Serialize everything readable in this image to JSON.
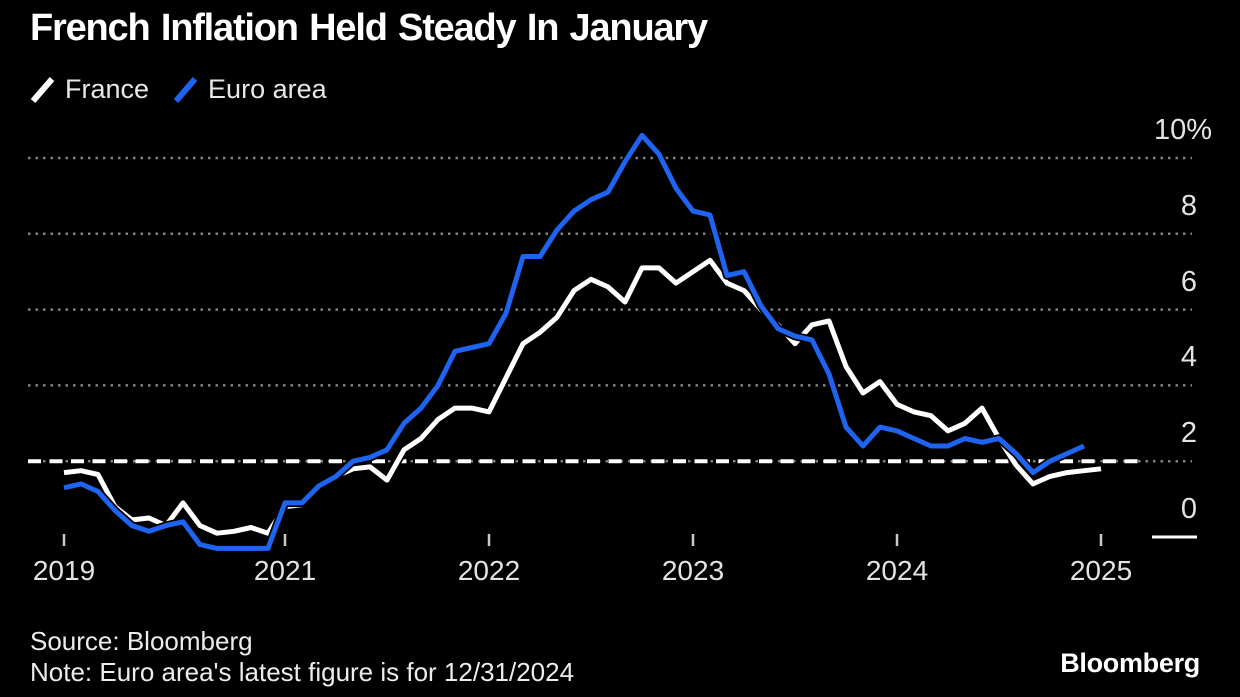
{
  "header": {
    "title": "French Inflation Held Steady In January"
  },
  "legend": {
    "items": [
      {
        "label": "France",
        "color": "#ffffff"
      },
      {
        "label": "Euro area",
        "color": "#1e64f0"
      }
    ]
  },
  "chart_data": {
    "type": "line",
    "title": "French Inflation Held Steady In January",
    "unit": "percent, year-over-year",
    "frequency": "monthly",
    "start_month": "2019-12",
    "grid": "dotted-horizontal",
    "legend_position": "top-left",
    "ylim": [
      -0.5,
      10.8
    ],
    "y_axis": {
      "ticks": [
        {
          "value": 10,
          "label": "10%"
        },
        {
          "value": 8,
          "label": "8"
        },
        {
          "value": 6,
          "label": "6"
        },
        {
          "value": 4,
          "label": "4"
        },
        {
          "value": 2,
          "label": "2"
        },
        {
          "value": 0,
          "label": "0"
        }
      ]
    },
    "x_axis": {
      "ticks": [
        {
          "label": "2019",
          "month_index": 0
        },
        {
          "label": "2021",
          "month_index": 13
        },
        {
          "label": "2022",
          "month_index": 25
        },
        {
          "label": "2023",
          "month_index": 37
        },
        {
          "label": "2024",
          "month_index": 49
        },
        {
          "label": "2025",
          "month_index": 61
        }
      ]
    },
    "target_line": {
      "value": 2,
      "style": "dashed",
      "color": "#ffffff"
    },
    "series": [
      {
        "name": "France",
        "color": "#ffffff",
        "last_point": "2025-01",
        "values": [
          1.7,
          1.75,
          1.65,
          0.8,
          0.45,
          0.5,
          0.3,
          0.9,
          0.3,
          0.1,
          0.15,
          0.25,
          0.1,
          0.8,
          0.85,
          1.4,
          1.6,
          1.8,
          1.85,
          1.5,
          2.3,
          2.6,
          3.1,
          3.4,
          3.4,
          3.3,
          4.2,
          5.1,
          5.4,
          5.8,
          6.5,
          6.8,
          6.6,
          6.2,
          7.1,
          7.1,
          6.7,
          7.0,
          7.3,
          6.7,
          6.5,
          6.0,
          5.6,
          5.1,
          5.6,
          5.7,
          4.5,
          3.8,
          4.1,
          3.5,
          3.3,
          3.2,
          2.8,
          3.0,
          3.4,
          2.6,
          1.9,
          1.4,
          1.6,
          1.7,
          1.75,
          1.8
        ]
      },
      {
        "name": "Euro area",
        "color": "#1e64f0",
        "last_point": "2024-12",
        "values": [
          1.3,
          1.4,
          1.2,
          0.7,
          0.3,
          0.15,
          0.3,
          0.4,
          -0.2,
          -0.3,
          -0.3,
          -0.3,
          -0.3,
          0.9,
          0.9,
          1.35,
          1.6,
          2.0,
          2.1,
          2.3,
          3.0,
          3.4,
          4.0,
          4.9,
          5.0,
          5.1,
          5.9,
          7.4,
          7.4,
          8.1,
          8.6,
          8.9,
          9.1,
          9.9,
          10.6,
          10.1,
          9.2,
          8.6,
          8.5,
          6.9,
          7.0,
          6.1,
          5.5,
          5.3,
          5.2,
          4.3,
          2.9,
          2.4,
          2.9,
          2.8,
          2.6,
          2.4,
          2.4,
          2.6,
          2.5,
          2.6,
          2.2,
          1.7,
          2.0,
          2.2,
          2.4
        ]
      }
    ]
  },
  "footer": {
    "source": "Source: Bloomberg",
    "note": "Note: Euro area's latest figure is for 12/31/2024",
    "brand": "Bloomberg"
  }
}
